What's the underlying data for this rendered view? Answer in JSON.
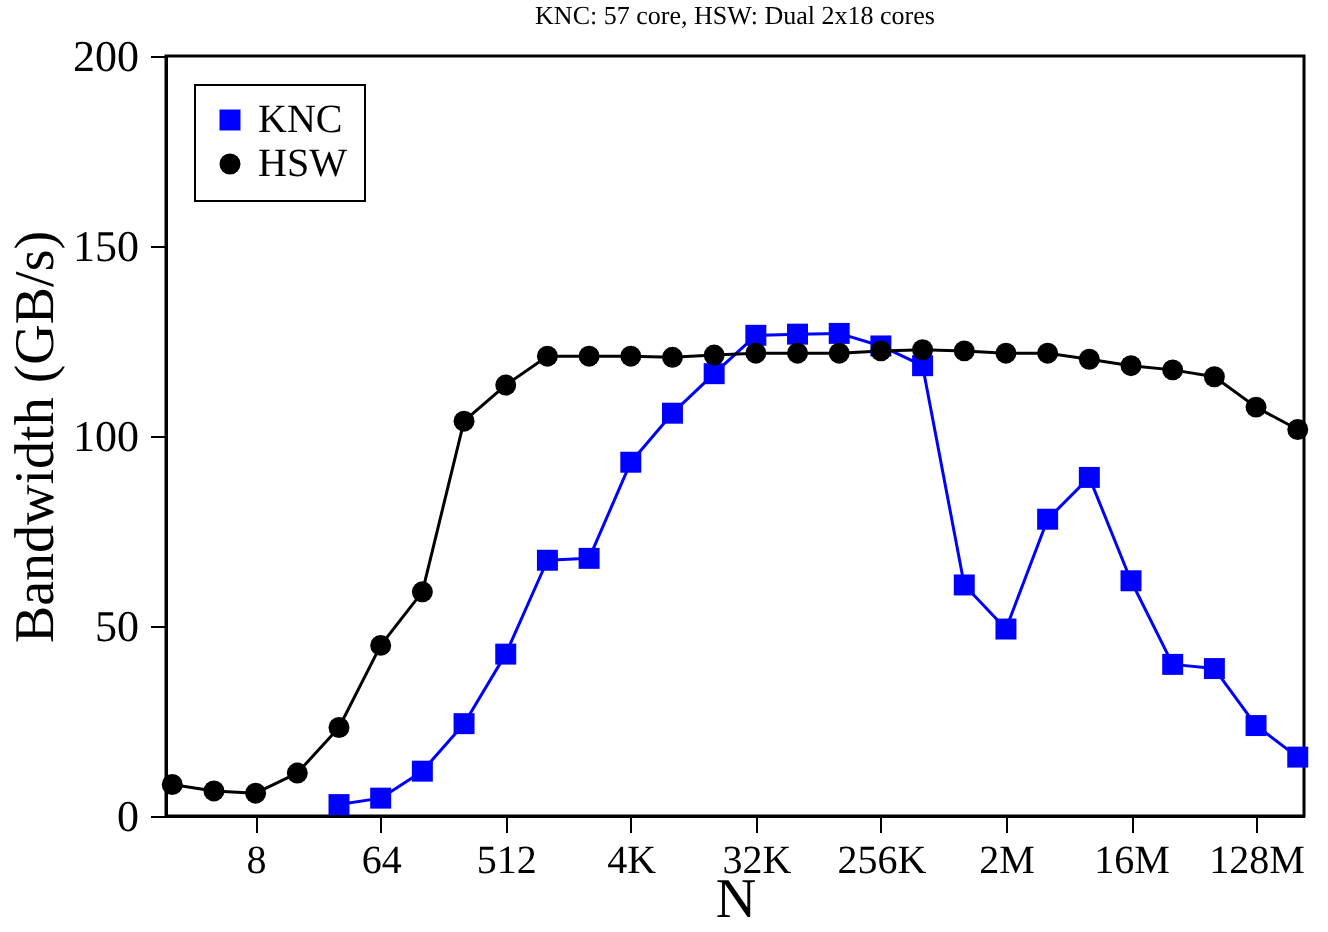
{
  "chart_data": {
    "type": "line",
    "title": "KNC: 57 core, HSW: Dual 2x18 cores",
    "xlabel": "N",
    "ylabel": "Bandwidth (GB/s)",
    "categories": [
      null,
      null,
      "8",
      null,
      null,
      "64",
      null,
      null,
      "512",
      null,
      null,
      "4K",
      null,
      null,
      "32K",
      null,
      null,
      "256K",
      null,
      null,
      "2M",
      null,
      null,
      "16M",
      null,
      null,
      "128M",
      null
    ],
    "ylim": [
      0,
      200
    ],
    "yticks": [
      0,
      50,
      100,
      150,
      200
    ],
    "grid": false,
    "legend": "top left",
    "line_style": "solid",
    "series": [
      {
        "name": "KNC",
        "color": "#0000ff",
        "marker": "square",
        "values": [
          null,
          null,
          null,
          null,
          3,
          4.7,
          11.8,
          24.3,
          42.6,
          67.3,
          67.8,
          93.1,
          106,
          116.4,
          126.5,
          126.8,
          127,
          123.7,
          118.5,
          60.8,
          49.2,
          78.1,
          89.1,
          61.9,
          39.9,
          38.8,
          23.8,
          15.5
        ]
      },
      {
        "name": "HSW",
        "color": "#000000",
        "marker": "circle",
        "values": [
          8.3,
          6.6,
          6,
          11.3,
          23.3,
          44.9,
          59,
          103.9,
          113.4,
          121,
          121,
          121,
          120.7,
          121.3,
          121.8,
          121.8,
          121.8,
          122.4,
          122.7,
          122.4,
          121.8,
          121.8,
          120.2,
          118.5,
          117.4,
          115.6,
          107.6,
          101.7
        ]
      }
    ]
  }
}
